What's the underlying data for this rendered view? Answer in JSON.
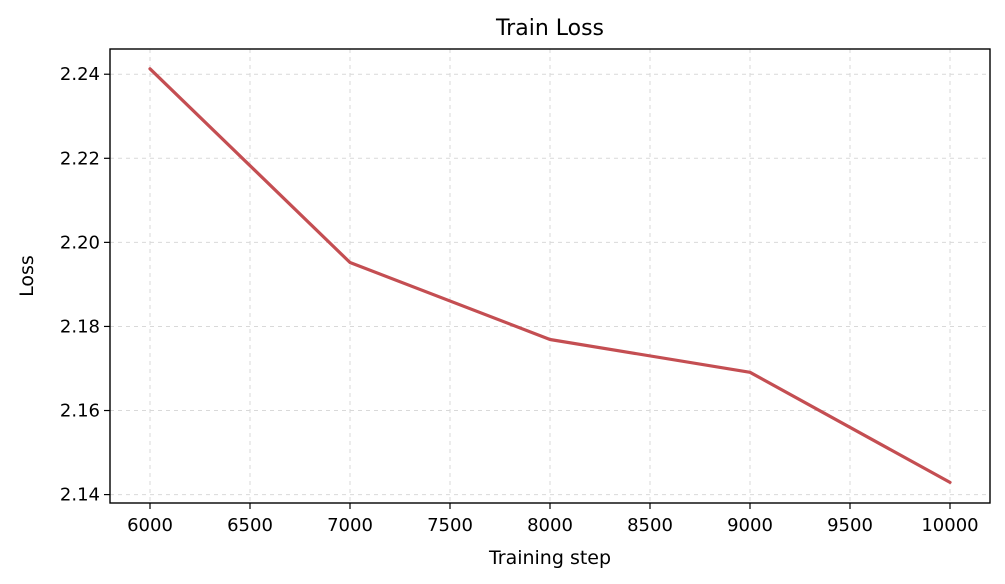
{
  "chart_data": {
    "type": "line",
    "title": "Train Loss",
    "xlabel": "Training step",
    "ylabel": "Loss",
    "xlim": [
      5800,
      10200
    ],
    "ylim": [
      2.138,
      2.246
    ],
    "xticks": [
      6000,
      6500,
      7000,
      7500,
      8000,
      8500,
      9000,
      9500,
      10000
    ],
    "yticks": [
      2.14,
      2.16,
      2.18,
      2.2,
      2.22,
      2.24
    ],
    "ytick_labels": [
      "2.14",
      "2.16",
      "2.18",
      "2.20",
      "2.22",
      "2.24"
    ],
    "grid": true,
    "series": [
      {
        "color": "#c44e52",
        "x": [
          6000,
          7000,
          8000,
          9000,
          10000
        ],
        "y": [
          2.2413,
          2.1952,
          2.1769,
          2.1691,
          2.1429
        ]
      }
    ]
  }
}
